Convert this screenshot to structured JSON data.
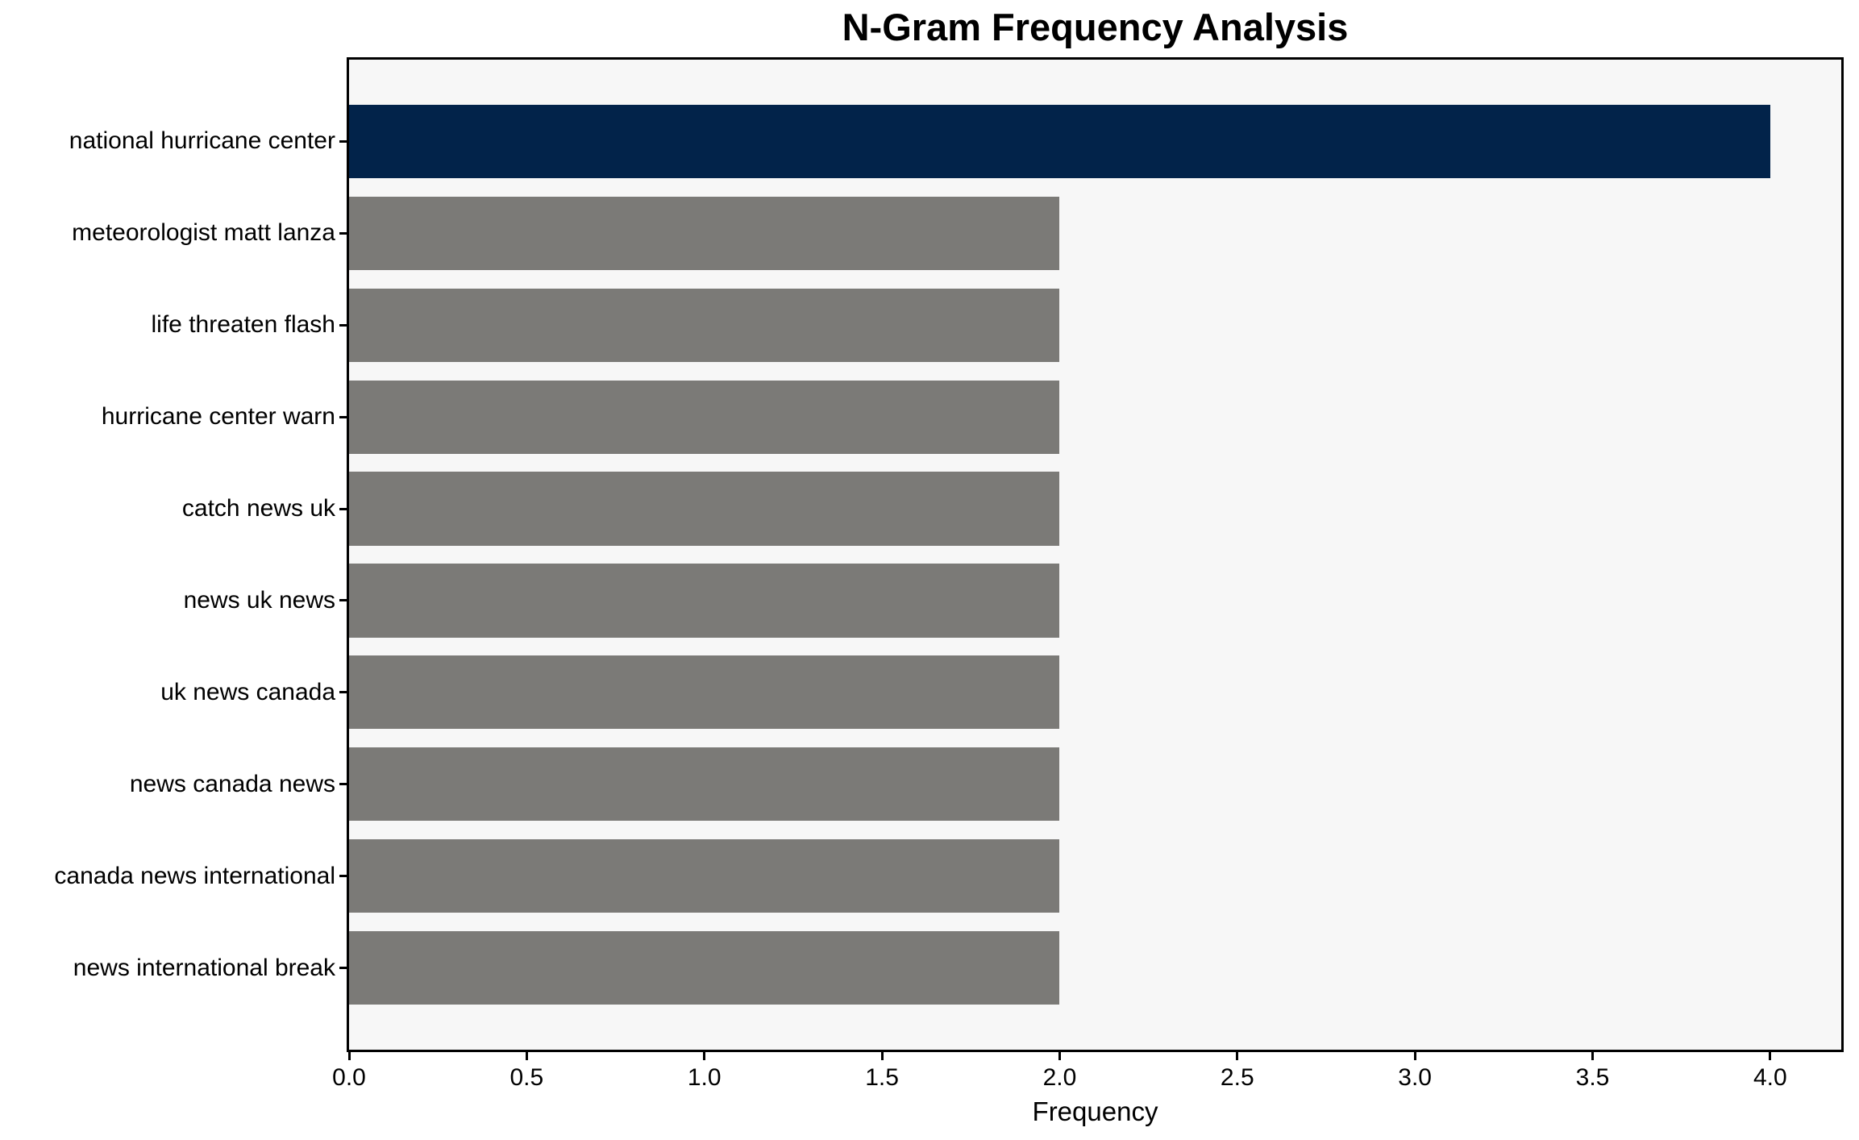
{
  "chart_data": {
    "type": "bar",
    "orientation": "horizontal",
    "title": "N-Gram Frequency Analysis",
    "xlabel": "Frequency",
    "ylabel": "",
    "categories": [
      "national hurricane center",
      "meteorologist matt lanza",
      "life threaten flash",
      "hurricane center warn",
      "catch news uk",
      "news uk news",
      "uk news canada",
      "news canada news",
      "canada news international",
      "news international break"
    ],
    "values": [
      4,
      2,
      2,
      2,
      2,
      2,
      2,
      2,
      2,
      2
    ],
    "bar_colors": [
      "#02234a",
      "#7b7a77",
      "#7b7a77",
      "#7b7a77",
      "#7b7a77",
      "#7b7a77",
      "#7b7a77",
      "#7b7a77",
      "#7b7a77",
      "#7b7a77"
    ],
    "highlight_color": "#02234a",
    "default_bar_color": "#7b7a77",
    "xlim": [
      0,
      4.2
    ],
    "xticks": [
      0.0,
      0.5,
      1.0,
      1.5,
      2.0,
      2.5,
      3.0,
      3.5,
      4.0
    ],
    "xtick_labels": [
      "0.0",
      "0.5",
      "1.0",
      "1.5",
      "2.0",
      "2.5",
      "3.0",
      "3.5",
      "4.0"
    ],
    "grid": false,
    "legend": "none",
    "plot_background": "#f7f7f7",
    "figure_background": "#ffffff",
    "axis_color": "#000000"
  }
}
